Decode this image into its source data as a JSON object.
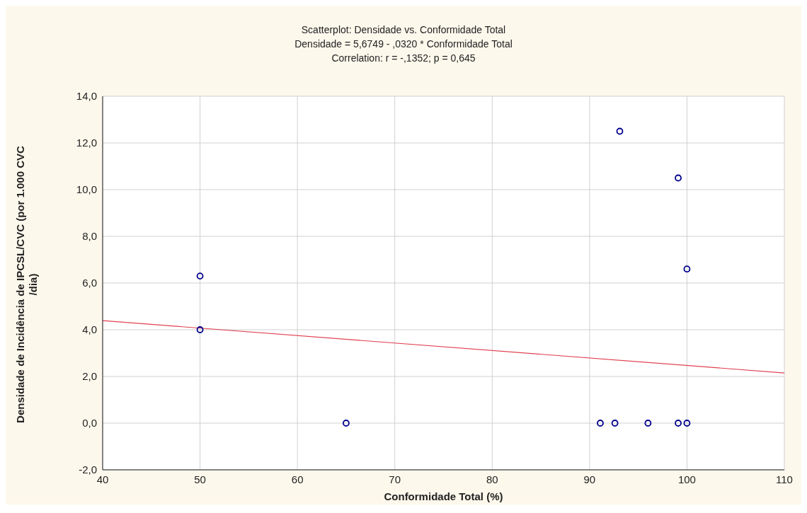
{
  "chart_data": {
    "type": "scatter",
    "title": "Scatterplot: Densidade vs. Conformidade Total",
    "subtitle": "Densidade = 5,6749 - ,0320  * Conformidade Total",
    "annotations": [
      "Correlation: r = -,1352; p = 0,645"
    ],
    "xlabel": "Conformidade Total (%)",
    "ylabel": "Densidade de Incidência de IPCSL/CVC (por 1.000 CVC\n/dia)",
    "series": [
      {
        "color": "#00008b",
        "marker": "circle",
        "x": [
          50,
          50,
          65,
          91.1,
          92.6,
          96,
          99.1,
          100,
          93.1,
          99.1,
          100
        ],
        "values": [
          6.3,
          4.0,
          0,
          0,
          0,
          0,
          0,
          0,
          12.5,
          10.5,
          6.6
        ]
      },
      {
        "type": "line",
        "color": "#e04050",
        "marker": "none",
        "x": [
          40,
          110
        ],
        "values": [
          4.39,
          2.15
        ]
      }
    ],
    "xlim": [
      40,
      110
    ],
    "xticks": [
      40,
      50,
      60,
      70,
      80,
      90,
      100,
      110
    ],
    "ylim": [
      -2,
      14
    ],
    "yticks": [
      {
        "value": -2,
        "label": "-2,0"
      },
      {
        "value": 0,
        "label": "0,0"
      },
      {
        "value": 2,
        "label": "2,0"
      },
      {
        "value": 4,
        "label": "4,0"
      },
      {
        "value": 6,
        "label": "6,0"
      },
      {
        "value": 8,
        "label": "8,0"
      },
      {
        "value": 10,
        "label": "10,0"
      },
      {
        "value": 12,
        "label": "12,0"
      },
      {
        "value": 14,
        "label": "14,0"
      }
    ],
    "grid": true,
    "legend": false
  }
}
